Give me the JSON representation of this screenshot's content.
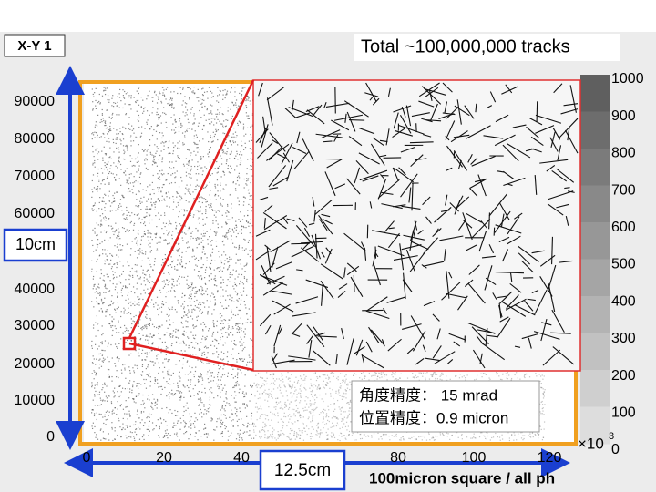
{
  "panel": {
    "label": "X-Y 1",
    "total": "Total ~100,000,000 tracks"
  },
  "y_axis": {
    "ticks": [
      "90000",
      "80000",
      "70000",
      "60000",
      "40000",
      "30000",
      "20000",
      "10000",
      "0"
    ]
  },
  "x_axis": {
    "ticks": [
      "0",
      "20",
      "40",
      "80",
      "100",
      "120"
    ],
    "multiplier": "×10",
    "exponent": "3",
    "title": "100micron square / all ph"
  },
  "colorbar": {
    "ticks": [
      "1000",
      "900",
      "800",
      "700",
      "600",
      "500",
      "400",
      "300",
      "200",
      "100",
      "0"
    ]
  },
  "annotations": {
    "height": "10cm",
    "width": "12.5cm",
    "angle": "角度精度： 15 mrad",
    "position": "位置精度：0.9 micron"
  }
}
